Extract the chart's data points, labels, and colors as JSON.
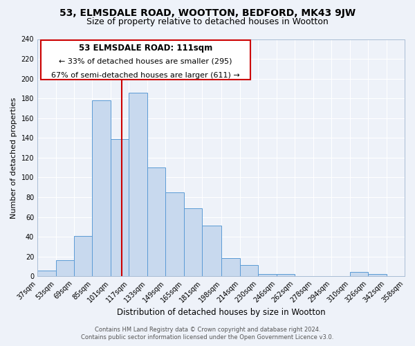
{
  "title": "53, ELMSDALE ROAD, WOOTTON, BEDFORD, MK43 9JW",
  "subtitle": "Size of property relative to detached houses in Wootton",
  "xlabel": "Distribution of detached houses by size in Wootton",
  "ylabel": "Number of detached properties",
  "footer_line1": "Contains HM Land Registry data © Crown copyright and database right 2024.",
  "footer_line2": "Contains public sector information licensed under the Open Government Licence v3.0.",
  "bin_edges": [
    37,
    53,
    69,
    85,
    101,
    117,
    133,
    149,
    165,
    181,
    198,
    214,
    230,
    246,
    262,
    278,
    294,
    310,
    326,
    342,
    358
  ],
  "bar_heights": [
    6,
    16,
    41,
    178,
    139,
    186,
    110,
    85,
    69,
    51,
    18,
    11,
    2,
    2,
    0,
    0,
    0,
    4,
    2,
    0
  ],
  "bar_color": "#c8d9ee",
  "bar_edge_color": "#5b9bd5",
  "property_line_x": 111,
  "property_line_color": "#cc0000",
  "annotation_title": "53 ELMSDALE ROAD: 111sqm",
  "annotation_line1": "← 33% of detached houses are smaller (295)",
  "annotation_line2": "67% of semi-detached houses are larger (611) →",
  "annotation_box_facecolor": "#ffffff",
  "annotation_box_edgecolor": "#cc0000",
  "ylim": [
    0,
    240
  ],
  "yticks": [
    0,
    20,
    40,
    60,
    80,
    100,
    120,
    140,
    160,
    180,
    200,
    220,
    240
  ],
  "xlim": [
    37,
    358
  ],
  "background_color": "#eef2f9",
  "grid_color": "#ffffff",
  "title_fontsize": 10,
  "subtitle_fontsize": 9,
  "xlabel_fontsize": 8.5,
  "ylabel_fontsize": 8,
  "tick_fontsize": 7,
  "footer_fontsize": 6,
  "annot_title_fontsize": 8.5,
  "annot_text_fontsize": 8
}
